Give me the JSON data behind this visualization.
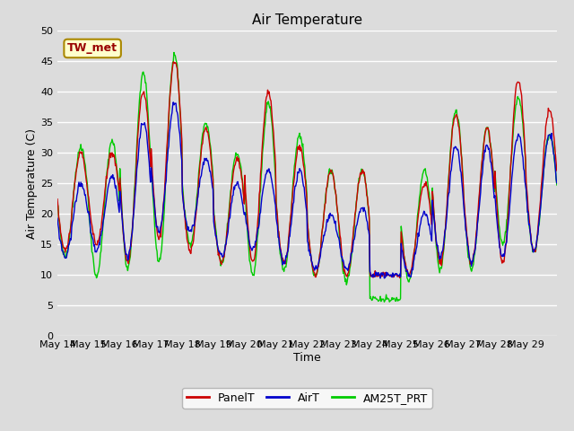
{
  "title": "Air Temperature",
  "xlabel": "Time",
  "ylabel": "Air Temperature (C)",
  "ylim": [
    0,
    50
  ],
  "yticks": [
    0,
    5,
    10,
    15,
    20,
    25,
    30,
    35,
    40,
    45,
    50
  ],
  "xtick_labels": [
    "May 14",
    "May 15",
    "May 16",
    "May 17",
    "May 18",
    "May 19",
    "May 20",
    "May 21",
    "May 22",
    "May 23",
    "May 24",
    "May 25",
    "May 26",
    "May 27",
    "May 28",
    "May 29"
  ],
  "annotation_text": "TW_met",
  "bg_color": "#dcdcdc",
  "line_panelT_color": "#cc0000",
  "line_airT_color": "#0000cc",
  "line_am25T_color": "#00cc00",
  "legend_labels": [
    "PanelT",
    "AirT",
    "AM25T_PRT"
  ],
  "title_fontsize": 11,
  "axis_label_fontsize": 9,
  "tick_fontsize": 8,
  "legend_fontsize": 9,
  "panel_peaks": [
    30,
    30,
    40,
    45,
    34,
    29,
    40,
    31,
    27,
    27,
    10,
    25,
    36,
    34,
    42,
    37
  ],
  "panel_troughs": [
    14,
    15,
    12,
    16,
    14,
    12,
    12,
    12,
    10,
    10,
    10,
    10,
    12,
    12,
    12,
    14
  ],
  "air_peaks": [
    25,
    26,
    35,
    38,
    29,
    25,
    27,
    27,
    20,
    21,
    10,
    20,
    31,
    31,
    33,
    33
  ],
  "air_troughs": [
    13,
    14,
    13,
    17,
    17,
    13,
    14,
    12,
    11,
    11,
    10,
    10,
    13,
    12,
    13,
    14
  ],
  "am25_peaks": [
    31,
    32,
    43,
    46,
    35,
    30,
    38,
    33,
    27,
    27,
    6,
    27,
    37,
    34,
    39,
    33
  ],
  "am25_troughs": [
    13,
    10,
    11,
    12,
    15,
    12,
    10,
    11,
    10,
    9,
    6,
    9,
    11,
    11,
    15,
    14
  ]
}
